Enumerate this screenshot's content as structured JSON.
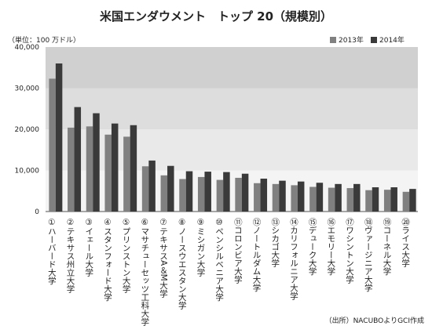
{
  "header": {
    "title": "米国エンダウメント　トップ 20（規模別）",
    "unit": "（単位：100 万ドル）",
    "source": "（出所）NACUBOよりGCI作成"
  },
  "chart_data": {
    "type": "bar",
    "title": "米国エンダウメント　トップ 20（規模別）",
    "ylabel": "（単位：100 万ドル）",
    "ylim": [
      0,
      40000
    ],
    "yticks": [
      "0",
      "10,000",
      "20,000",
      "30,000",
      "40,000"
    ],
    "ytick_values": [
      0,
      10000,
      20000,
      30000,
      40000
    ],
    "legend_position": "top-right",
    "categories": [
      "①ハーバード大学",
      "②テキサス州立大学",
      "③イェール大学",
      "④スタンフォード大学",
      "⑤プリンストン大学",
      "⑥マサチューセッツ工科大学",
      "⑦テキサスA＆M大学",
      "⑧ノースウエスタン大学",
      "⑨ミシガン大学",
      "⑩ペンシルベニア大学",
      "⑪コロンビア大学",
      "⑫ノートルダム大学",
      "⑬シカゴ大学",
      "⑭カリフォルニア大学",
      "⑮デューク大学",
      "⑯エモリー大学",
      "⑰ワシントン大学",
      "⑱ヴァージニア大学",
      "⑲コーネル大学",
      "⑳ライス大学"
    ],
    "series": [
      {
        "name": "2013年",
        "color": "#808080",
        "values": [
          32300,
          20400,
          20700,
          18700,
          18200,
          11000,
          8800,
          7900,
          8400,
          7700,
          8200,
          6900,
          6700,
          6400,
          6000,
          5800,
          5700,
          5200,
          5300,
          4800
        ]
      },
      {
        "name": "2014年",
        "color": "#3a3a3a",
        "values": [
          36000,
          25400,
          23900,
          21400,
          21000,
          12400,
          11100,
          9800,
          9700,
          9600,
          9200,
          8000,
          7500,
          7300,
          7000,
          6700,
          6700,
          5900,
          5900,
          5500
        ]
      }
    ],
    "band_colors": [
      "#f4f4f4",
      "#e9e9e9",
      "#dddddd",
      "#d0d0d0"
    ]
  }
}
